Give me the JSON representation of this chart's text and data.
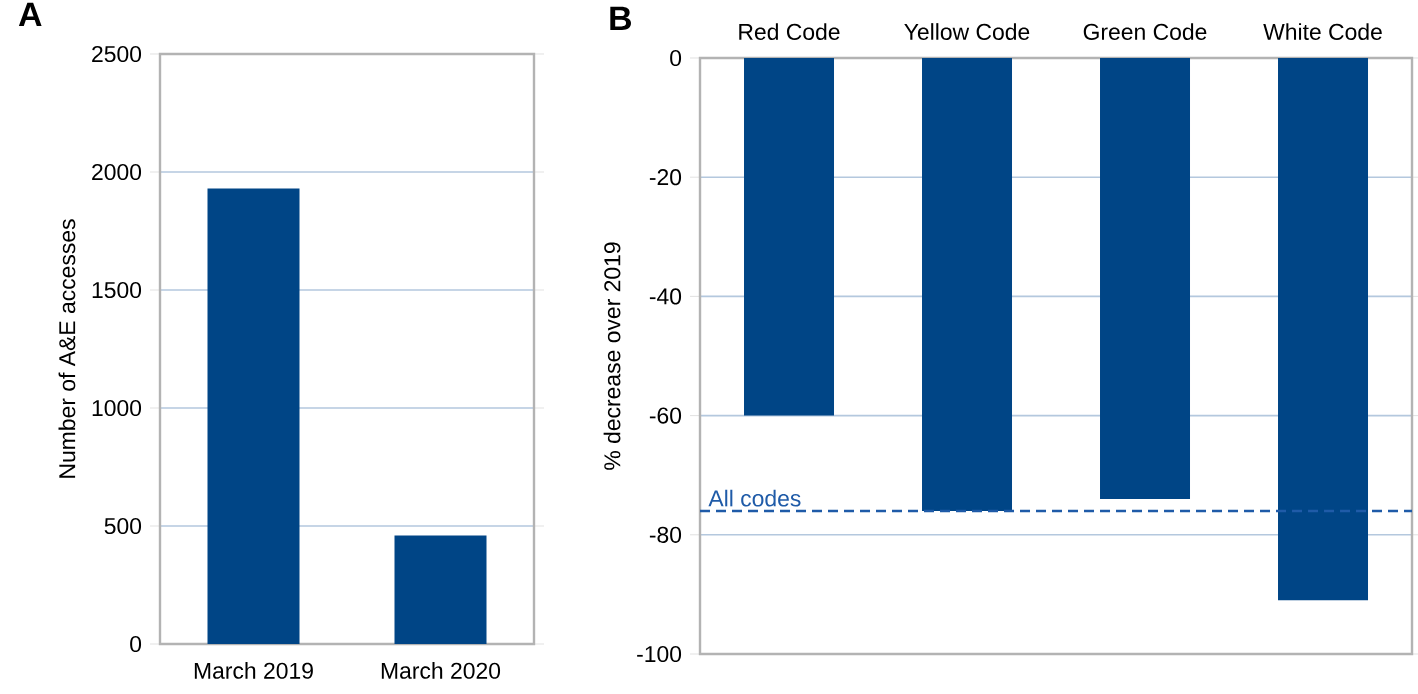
{
  "chart_data": [
    {
      "type": "bar",
      "title": "A",
      "ylabel": "Number of A&E accesses",
      "categories": [
        "March 2019",
        "March 2020"
      ],
      "values": [
        1930,
        460
      ],
      "color": "#004586",
      "ylim": [
        0,
        2500
      ],
      "yticks": [
        0,
        500,
        1000,
        1500,
        2000,
        2500
      ],
      "grid": "y"
    },
    {
      "type": "bar",
      "title": "B",
      "ylabel": "% decrease over 2019",
      "categories": [
        "Red Code",
        "Yellow Code",
        "Green Code",
        "White Code"
      ],
      "values": [
        -60,
        -76,
        -74,
        -91
      ],
      "color": "#004586",
      "ylim": [
        -100,
        0
      ],
      "yticks": [
        -100,
        -80,
        -60,
        -40,
        -20,
        0
      ],
      "grid": "y",
      "ref_lines": [
        {
          "axis": "y",
          "value": -76,
          "label": "All codes",
          "color": "#1f5ba8",
          "line_style": "dashed"
        }
      ]
    }
  ]
}
